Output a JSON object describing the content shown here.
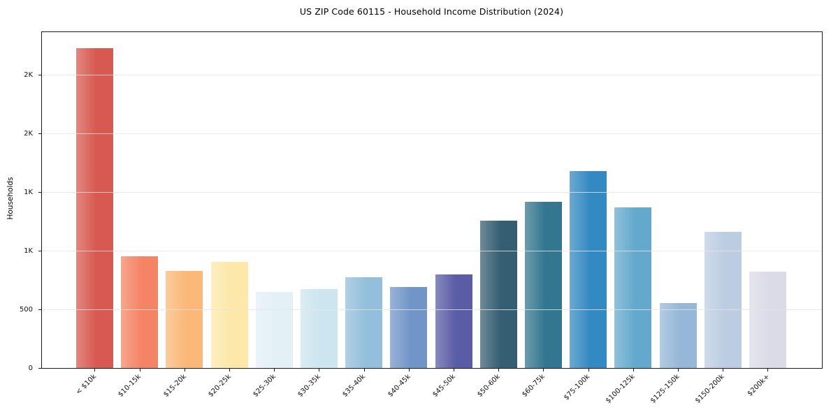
{
  "chart_data": {
    "type": "bar",
    "title": "US ZIP Code 60115 - Household Income Distribution (2024)",
    "xlabel": "",
    "ylabel": "Households",
    "categories": [
      "< $10k",
      "$10-15k",
      "$15-20k",
      "$20-25k",
      "$25-30k",
      "$30-35k",
      "$35-40k",
      "$40-45k",
      "$45-50k",
      "$50-60k",
      "$60-75k",
      "$75-100k",
      "$100-125k",
      "$125-150k",
      "$150-200k",
      "$200k+"
    ],
    "values": [
      2730,
      950,
      825,
      905,
      650,
      670,
      775,
      690,
      800,
      1255,
      1420,
      1680,
      1370,
      555,
      1160,
      820
    ],
    "bar_colors": [
      "#d75951",
      "#f48465",
      "#fbb878",
      "#fde8a9",
      "#e3f0f5",
      "#cde5ef",
      "#94bfdc",
      "#7295c8",
      "#5a5ca6",
      "#365e73",
      "#33768f",
      "#3389c1",
      "#64a9cd",
      "#96b7d7",
      "#bccde2",
      "#dbdbe8"
    ],
    "ylim": [
      0,
      2870
    ],
    "yticks": [
      0,
      500,
      1000,
      1500,
      2000,
      2500
    ],
    "ytick_labels": [
      "0",
      "500",
      "1K",
      "1K",
      "2K",
      "2K"
    ],
    "x_tick_rotation": -45,
    "grid": "horizontal",
    "legend": "none",
    "frame": "full-box"
  }
}
